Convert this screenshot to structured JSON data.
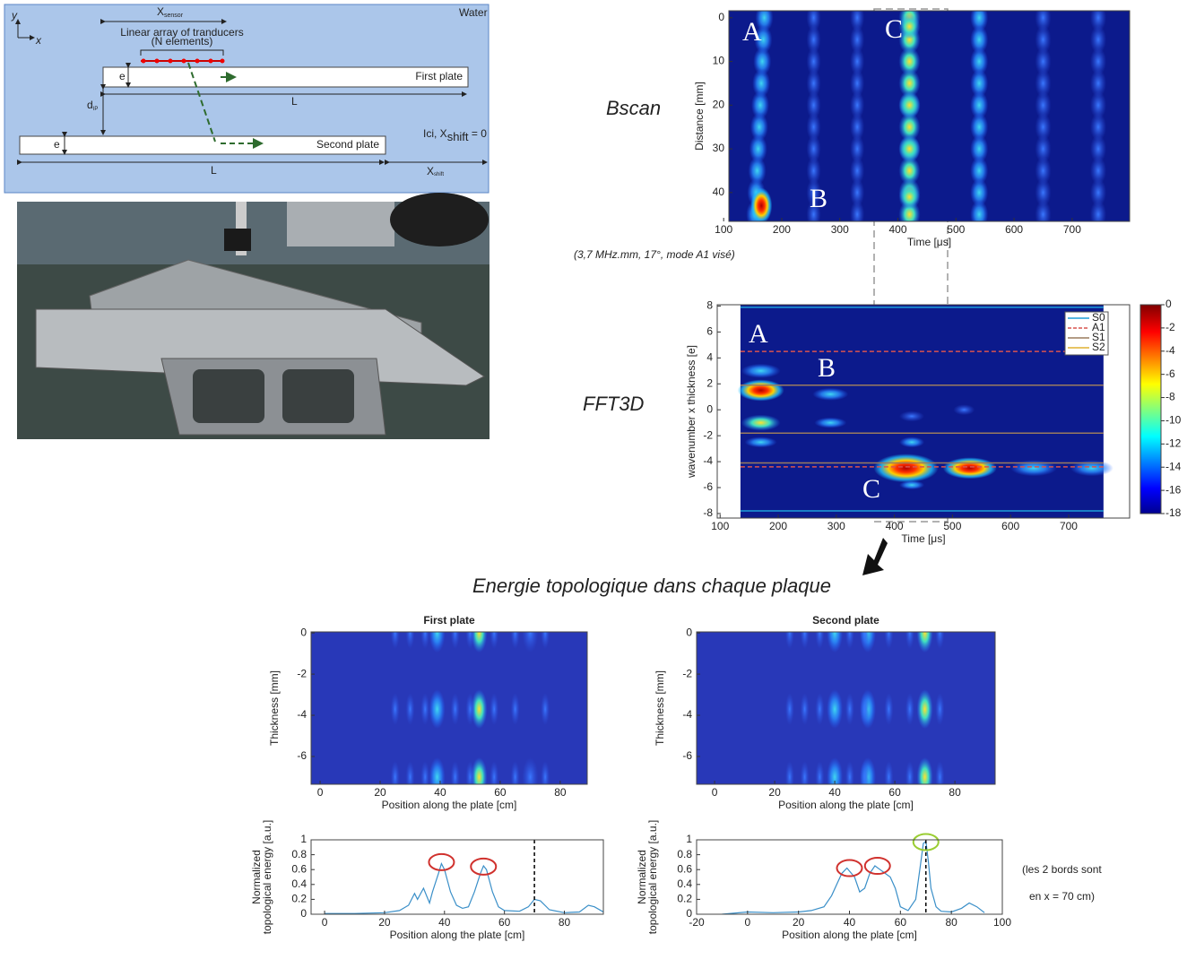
{
  "diagram": {
    "water": "Water",
    "y_axis": "y",
    "x_axis": "x",
    "x_sensor": {
      "base": "X",
      "sub": "sensor"
    },
    "array_label": "Linear array of tranducers",
    "array_sub": "(N elements)",
    "first_plate": "First plate",
    "second_plate": "Second plate",
    "thickness_1": "e",
    "thickness_2": "e",
    "length_1": "L",
    "length_2": "L",
    "gap": {
      "base": "d",
      "sub": "IP"
    },
    "shift": {
      "base": "X",
      "sub": "shift"
    }
  },
  "note_shift": {
    "prefix": "Ici, ",
    "base": "X",
    "sub": "shift",
    "suffix": " = 0"
  },
  "bscan": {
    "label": "Bscan",
    "caption": "(3,7 MHz.mm, 17°, mode A1 visé)",
    "xlabel": "Time [μs]",
    "ylabel": "Distance [mm]",
    "xlim": [
      109,
      799
    ],
    "ylim": [
      -1.6,
      46.6
    ],
    "y_reversed": true,
    "xticks": [
      100,
      200,
      300,
      400,
      500,
      600,
      700
    ],
    "yticks": [
      0,
      10,
      20,
      30,
      40
    ],
    "markers": [
      "A",
      "B",
      "C"
    ]
  },
  "fft": {
    "label": "FFT3D",
    "xlabel": "Time [μs]",
    "ylabel": "wavenumber x thickness  [e]",
    "xlim": [
      95,
      805
    ],
    "ylim": [
      -8.35,
      8.1
    ],
    "xticks": [
      100,
      200,
      300,
      400,
      500,
      600,
      700
    ],
    "yticks": [
      8,
      6,
      4,
      2,
      0,
      -2,
      -4,
      -6,
      -8
    ],
    "markers": [
      "A",
      "B",
      "C"
    ],
    "modes": [
      {
        "name": "S0",
        "color": "#1f9fd8",
        "dash": false,
        "values": [
          7.9,
          -7.8
        ]
      },
      {
        "name": "A1",
        "color": "#d9534f",
        "dash": true,
        "values": [
          4.5,
          -4.4
        ]
      },
      {
        "name": "S1",
        "color": "#9a7b5e",
        "dash": false,
        "values": [
          1.9,
          -1.8,
          -4.1
        ]
      },
      {
        "name": "S2",
        "color": "#e0b030",
        "dash": false,
        "values": []
      }
    ],
    "colorbar": {
      "ylim": [
        -18,
        0
      ],
      "ticks": [
        0,
        -2,
        -4,
        -6,
        -8,
        -10,
        -12,
        -14,
        -16,
        -18
      ]
    }
  },
  "energy": {
    "title": "Energie topologique dans chaque plaque",
    "first": {
      "title": "First plate",
      "xlabel": "Position along the plate [cm]",
      "ylabel": "Thickness [mm]",
      "xlim": [
        -3,
        89
      ],
      "ylim": [
        -7.35,
        0.05
      ],
      "xticks": [
        0,
        20,
        40,
        60,
        80
      ],
      "yticks": [
        0,
        -2,
        -4,
        -6
      ]
    },
    "second": {
      "title": "Second plate",
      "xlabel": "Position along the plate [cm]",
      "ylabel": "Thickness [mm]",
      "xlim": [
        -6,
        93.4
      ],
      "ylim": [
        -7.35,
        0.05
      ],
      "xticks": [
        0,
        20,
        40,
        60,
        80
      ],
      "yticks": [
        0,
        -2,
        -4,
        -6
      ]
    },
    "first_curve": {
      "xlabel": "Position along the plate [cm]",
      "ylabel": [
        "Normalized",
        "topological energy [a.u.]"
      ],
      "xlim": [
        -4.5,
        93
      ],
      "ylim": [
        0,
        1
      ],
      "xticks": [
        0,
        20,
        40,
        60,
        80
      ],
      "yticks": [
        0,
        0.2,
        0.4,
        0.6,
        0.8,
        1
      ],
      "color": "#3a8fc8",
      "edge_x": 70,
      "x": [
        0,
        10,
        20,
        25,
        28,
        30,
        31,
        33,
        35,
        36,
        38,
        39,
        40,
        42,
        44,
        46,
        48,
        50,
        52,
        53,
        54,
        56,
        58,
        60,
        65,
        68,
        70,
        72,
        75,
        80,
        85,
        88,
        90,
        93
      ],
      "y": [
        0.01,
        0.01,
        0.02,
        0.05,
        0.12,
        0.28,
        0.2,
        0.35,
        0.15,
        0.3,
        0.55,
        0.68,
        0.6,
        0.3,
        0.12,
        0.08,
        0.1,
        0.3,
        0.55,
        0.65,
        0.6,
        0.3,
        0.1,
        0.05,
        0.04,
        0.1,
        0.2,
        0.18,
        0.06,
        0.02,
        0.03,
        0.12,
        0.1,
        0.03
      ],
      "highlights": [
        {
          "x": 39,
          "y": 0.7,
          "color": "#d0312d"
        },
        {
          "x": 53,
          "y": 0.64,
          "color": "#d0312d"
        }
      ]
    },
    "second_curve": {
      "xlabel": "Position along the plate [cm]",
      "ylabel": [
        "Normalized",
        "topological energy [a.u.]"
      ],
      "xlim": [
        -20,
        100
      ],
      "ylim": [
        0,
        1
      ],
      "xticks": [
        -20,
        0,
        20,
        40,
        60,
        80,
        100
      ],
      "yticks": [
        0,
        0.2,
        0.4,
        0.6,
        0.8,
        1
      ],
      "color": "#3a8fc8",
      "edge_x": 70,
      "x": [
        -10,
        0,
        10,
        20,
        25,
        30,
        33,
        35,
        37,
        39,
        40,
        42,
        44,
        46,
        48,
        50,
        52,
        54,
        56,
        58,
        60,
        63,
        66,
        68,
        69,
        70,
        71,
        72,
        74,
        76,
        80,
        84,
        87,
        90,
        93
      ],
      "y": [
        0,
        0.03,
        0.02,
        0.03,
        0.05,
        0.1,
        0.25,
        0.4,
        0.55,
        0.62,
        0.58,
        0.5,
        0.3,
        0.35,
        0.55,
        0.65,
        0.6,
        0.55,
        0.5,
        0.35,
        0.1,
        0.05,
        0.2,
        0.7,
        0.95,
        0.98,
        0.7,
        0.35,
        0.1,
        0.04,
        0.03,
        0.08,
        0.15,
        0.1,
        0.02
      ],
      "highlights": [
        {
          "x": 40,
          "y": 0.62,
          "color": "#d0312d"
        },
        {
          "x": 51,
          "y": 0.65,
          "color": "#d0312d"
        },
        {
          "x": 70,
          "y": 0.97,
          "color": "#9acd32"
        }
      ]
    }
  },
  "side_note": {
    "lines": [
      "(les 2 bords sont",
      "en x = 70 cm)"
    ]
  }
}
